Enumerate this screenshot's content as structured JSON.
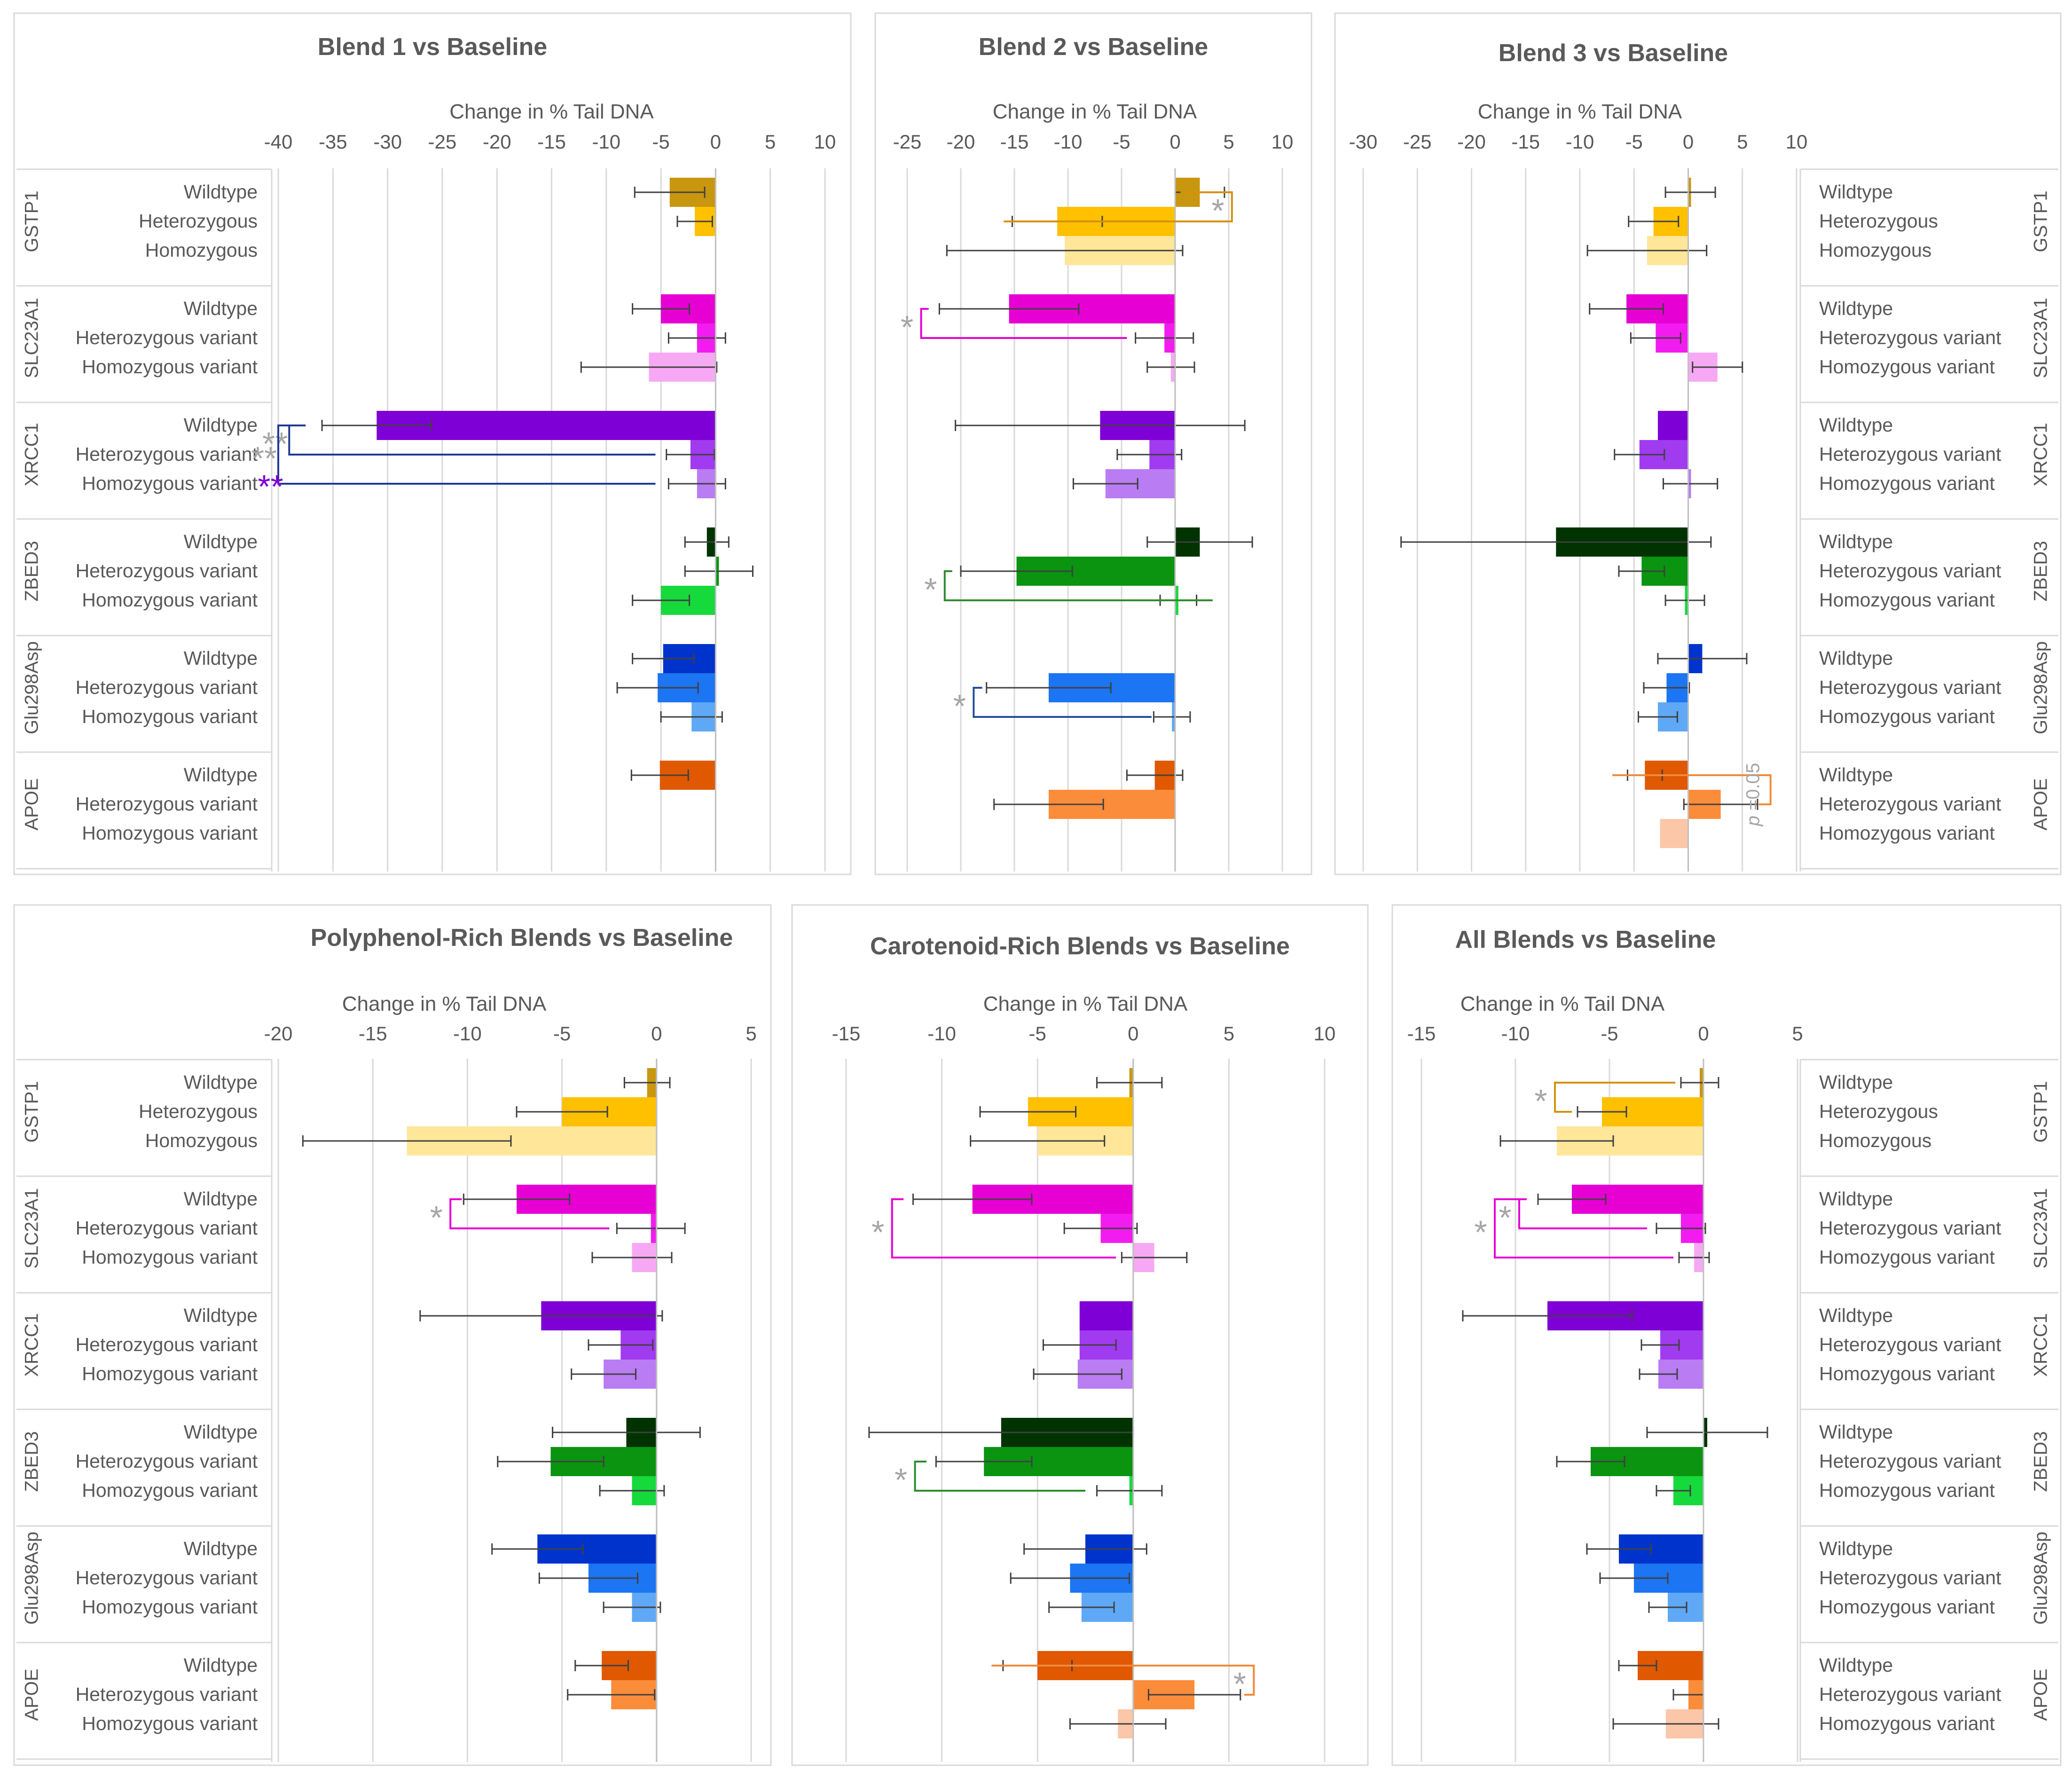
{
  "figure": {
    "axis_title": "Change in % Tail DNA",
    "pvalue_prefix": "p",
    "pvalue_suffix": "=0.05",
    "star": "*"
  },
  "colors": {
    "GSTP1": [
      "#C8960F",
      "#FFC000",
      "#FFE699"
    ],
    "SLC23A1": [
      "#E600D4",
      "#F21CF0",
      "#F7A8F4"
    ],
    "XRCC1": [
      "#7E00D6",
      "#A13BEF",
      "#B97CF3"
    ],
    "ZBED3": [
      "#003300",
      "#0A9410",
      "#16D93C"
    ],
    "Glu298Asp": [
      "#0033CC",
      "#1C75F2",
      "#5FA8F5"
    ],
    "APOE": [
      "#E05800",
      "#FB8C3A",
      "#FBC7A8"
    ]
  },
  "chart_data": [
    {
      "type": "bar",
      "orientation": "horizontal",
      "title": "Blend 1 vs Baseline",
      "xlabel": "Change in % Tail DNA",
      "xlim": [
        -40,
        10
      ],
      "ticks": [
        -40,
        -35,
        -30,
        -25,
        -20,
        -15,
        -10,
        -5,
        0,
        5,
        10
      ],
      "grid": true,
      "gene_labels_side": "left",
      "groups": [
        {
          "gene": "GSTP1",
          "genotypes": [
            "Wildtype",
            "Heterozygous",
            "Homozygous"
          ],
          "values": [
            -4.2,
            -1.9,
            null
          ],
          "errors": [
            3.2,
            1.6,
            null
          ]
        },
        {
          "gene": "SLC23A1",
          "genotypes": [
            "Wildtype",
            "Heterozygous variant",
            "Homozygous variant"
          ],
          "values": [
            -5.0,
            -1.7,
            -6.1
          ],
          "errors": [
            2.6,
            2.6,
            6.2
          ]
        },
        {
          "gene": "XRCC1",
          "genotypes": [
            "Wildtype",
            "Heterozygous variant",
            "Homozygous variant"
          ],
          "values": [
            -31.0,
            -2.3,
            -1.7
          ],
          "errors": [
            5.0,
            2.2,
            2.6
          ]
        },
        {
          "gene": "ZBED3",
          "genotypes": [
            "Wildtype",
            "Heterozygous variant",
            "Homozygous variant"
          ],
          "values": [
            -0.8,
            0.3,
            -5.0
          ],
          "errors": [
            2.0,
            3.1,
            2.6
          ]
        },
        {
          "gene": "Glu298Asp",
          "genotypes": [
            "Wildtype",
            "Heterozygous variant",
            "Homozygous variant"
          ],
          "values": [
            -4.8,
            -5.3,
            -2.2
          ],
          "errors": [
            2.8,
            3.7,
            2.8
          ]
        },
        {
          "gene": "APOE",
          "genotypes": [
            "Wildtype",
            "Heterozygous variant",
            "Homozygous variant"
          ],
          "values": [
            -5.1,
            null,
            null
          ],
          "errors": [
            2.6,
            null,
            null
          ]
        }
      ],
      "significance": [
        {
          "gene": "XRCC1",
          "from": 0,
          "to": 1,
          "bracket_x": -39.0,
          "ends": [
            -38.0,
            -5.5
          ],
          "label": "**",
          "color": "#1F3A93"
        },
        {
          "gene": "XRCC1",
          "from": 0,
          "to": 2,
          "bracket_x": -40.0,
          "ends": [
            -37.5,
            -5.5
          ],
          "label": "**",
          "color": "#1F3A93"
        }
      ],
      "annotations": [
        {
          "text": "**",
          "gene": "XRCC1",
          "row": 2,
          "x": -42.0,
          "color": "#7E00D6"
        }
      ]
    },
    {
      "type": "bar",
      "orientation": "horizontal",
      "title": "Blend 2 vs Baseline",
      "xlabel": "Change in % Tail DNA",
      "xlim": [
        -25,
        10
      ],
      "ticks": [
        -25,
        -20,
        -15,
        -10,
        -5,
        0,
        5,
        10
      ],
      "grid": true,
      "gene_labels_side": "none",
      "groups": [
        {
          "gene": "GSTP1",
          "genotypes": [
            "Wildtype",
            "Heterozygous",
            "Homozygous"
          ],
          "values": [
            2.3,
            -11.0,
            -10.3
          ],
          "errors": [
            2.3,
            4.2,
            11.0
          ]
        },
        {
          "gene": "SLC23A1",
          "genotypes": [
            "Wildtype",
            "Heterozygous variant",
            "Homozygous variant"
          ],
          "values": [
            -15.5,
            -1.0,
            -0.4
          ],
          "errors": [
            6.5,
            2.7,
            2.2
          ]
        },
        {
          "gene": "XRCC1",
          "genotypes": [
            "Wildtype",
            "Heterozygous variant",
            "Homozygous variant"
          ],
          "values": [
            -7.0,
            -2.4,
            -6.5
          ],
          "errors": [
            13.5,
            3.0,
            3.0
          ]
        },
        {
          "gene": "ZBED3",
          "genotypes": [
            "Wildtype",
            "Heterozygous variant",
            "Homozygous variant"
          ],
          "values": [
            2.3,
            -14.8,
            0.3
          ],
          "errors": [
            4.9,
            5.2,
            1.7
          ]
        },
        {
          "gene": "Glu298Asp",
          "genotypes": [
            "Wildtype",
            "Heterozygous variant",
            "Homozygous variant"
          ],
          "values": [
            null,
            -11.8,
            -0.3
          ],
          "errors": [
            null,
            5.8,
            1.7
          ]
        },
        {
          "gene": "APOE",
          "genotypes": [
            "Wildtype",
            "Heterozygous variant",
            "Homozygous variant"
          ],
          "values": [
            -1.9,
            -11.8,
            null
          ],
          "errors": [
            2.6,
            5.1,
            null
          ]
        }
      ],
      "significance": [
        {
          "gene": "GSTP1",
          "from": 0,
          "to": 1,
          "bracket_x": 5.3,
          "bracket_side": "right",
          "ends": [
            0.5,
            -16.0
          ],
          "label": "*",
          "color": "#D4920C"
        },
        {
          "gene": "SLC23A1",
          "from": 0,
          "to": 1,
          "bracket_x": -23.7,
          "ends": [
            -23.0,
            -4.5
          ],
          "label": "*",
          "color": "#E600D4"
        },
        {
          "gene": "ZBED3",
          "from": 1,
          "to": 2,
          "bracket_x": -21.5,
          "ends": [
            -20.8,
            3.5
          ],
          "label": "*",
          "color": "#2E8B2E",
          "bracket_side": "mixed"
        },
        {
          "gene": "Glu298Asp",
          "from": 1,
          "to": 2,
          "bracket_x": -18.8,
          "ends": [
            -18.0,
            -2.2
          ],
          "label": "*",
          "color": "#1F4E9A"
        }
      ]
    },
    {
      "type": "bar",
      "orientation": "horizontal",
      "title": "Blend 3 vs Baseline",
      "xlabel": "Change in % Tail DNA",
      "xlim": [
        -30,
        10
      ],
      "ticks": [
        -30,
        -25,
        -20,
        -15,
        -10,
        -5,
        0,
        5,
        10
      ],
      "grid": true,
      "gene_labels_side": "right",
      "groups": [
        {
          "gene": "GSTP1",
          "genotypes": [
            "Wildtype",
            "Heterozygous",
            "Homozygous"
          ],
          "values": [
            0.2,
            -3.2,
            -3.8
          ],
          "errors": [
            2.3,
            2.3,
            5.5
          ]
        },
        {
          "gene": "SLC23A1",
          "genotypes": [
            "Wildtype",
            "Heterozygous variant",
            "Homozygous variant"
          ],
          "values": [
            -5.7,
            -3.0,
            2.7
          ],
          "errors": [
            3.4,
            2.3,
            2.3
          ]
        },
        {
          "gene": "XRCC1",
          "genotypes": [
            "Wildtype",
            "Heterozygous variant",
            "Homozygous variant"
          ],
          "values": [
            -2.8,
            -4.5,
            0.2
          ],
          "errors": [
            null,
            2.3,
            2.5
          ]
        },
        {
          "gene": "ZBED3",
          "genotypes": [
            "Wildtype",
            "Heterozygous variant",
            "Homozygous variant"
          ],
          "values": [
            -12.2,
            -4.3,
            -0.3
          ],
          "errors": [
            14.3,
            2.1,
            1.8
          ]
        },
        {
          "gene": "Glu298Asp",
          "genotypes": [
            "Wildtype",
            "Heterozygous variant",
            "Homozygous variant"
          ],
          "values": [
            1.3,
            -2.0,
            -2.8
          ],
          "errors": [
            4.1,
            2.1,
            1.8
          ]
        },
        {
          "gene": "APOE",
          "genotypes": [
            "Wildtype",
            "Heterozygous variant",
            "Homozygous variant"
          ],
          "values": [
            -4.0,
            3.0,
            -2.6
          ],
          "errors": [
            1.6,
            3.4,
            null
          ]
        }
      ],
      "significance": [
        {
          "gene": "APOE",
          "from": 0,
          "to": 1,
          "bracket_x": 7.6,
          "bracket_side": "wrap",
          "ends": [
            -7.0,
            6.5
          ],
          "label": "p =0.05",
          "color": "#F08A3C"
        }
      ]
    },
    {
      "type": "bar",
      "orientation": "horizontal",
      "title": "Polyphenol-Rich Blends vs Baseline",
      "xlabel": "Change in % Tail DNA",
      "xlim": [
        -20,
        5
      ],
      "ticks": [
        -20,
        -15,
        -10,
        -5,
        0,
        5
      ],
      "grid": true,
      "gene_labels_side": "left",
      "groups": [
        {
          "gene": "GSTP1",
          "genotypes": [
            "Wildtype",
            "Heterozygous",
            "Homozygous"
          ],
          "values": [
            -0.5,
            -5.0,
            -13.2
          ],
          "errors": [
            1.2,
            2.4,
            5.5
          ]
        },
        {
          "gene": "SLC23A1",
          "genotypes": [
            "Wildtype",
            "Heterozygous variant",
            "Homozygous variant"
          ],
          "values": [
            -7.4,
            -0.3,
            -1.3
          ],
          "errors": [
            2.8,
            1.8,
            2.1
          ]
        },
        {
          "gene": "XRCC1",
          "genotypes": [
            "Wildtype",
            "Heterozygous variant",
            "Homozygous variant"
          ],
          "values": [
            -6.1,
            -1.9,
            -2.8
          ],
          "errors": [
            6.4,
            1.7,
            1.7
          ]
        },
        {
          "gene": "ZBED3",
          "genotypes": [
            "Wildtype",
            "Heterozygous variant",
            "Homozygous variant"
          ],
          "values": [
            -1.6,
            -5.6,
            -1.3
          ],
          "errors": [
            3.9,
            2.8,
            1.7
          ]
        },
        {
          "gene": "Glu298Asp",
          "genotypes": [
            "Wildtype",
            "Heterozygous variant",
            "Homozygous variant"
          ],
          "values": [
            -6.3,
            -3.6,
            -1.3
          ],
          "errors": [
            2.4,
            2.6,
            1.5
          ]
        },
        {
          "gene": "APOE",
          "genotypes": [
            "Wildtype",
            "Heterozygous variant",
            "Homozygous variant"
          ],
          "values": [
            -2.9,
            -2.4,
            null
          ],
          "errors": [
            1.4,
            2.3,
            null
          ]
        }
      ],
      "significance": [
        {
          "gene": "SLC23A1",
          "from": 0,
          "to": 1,
          "bracket_x": -10.9,
          "ends": [
            -10.3,
            -2.5
          ],
          "label": "*",
          "color": "#E600D4"
        }
      ]
    },
    {
      "type": "bar",
      "orientation": "horizontal",
      "title": "Carotenoid-Rich Blends vs Baseline",
      "xlabel": "Change in % Tail DNA",
      "xlim": [
        -15,
        10
      ],
      "ticks": [
        -15,
        -10,
        -5,
        0,
        5,
        10
      ],
      "grid": true,
      "gene_labels_side": "none",
      "groups": [
        {
          "gene": "GSTP1",
          "genotypes": [
            "Wildtype",
            "Heterozygous",
            "Homozygous"
          ],
          "values": [
            -0.2,
            -5.5,
            -5.0
          ],
          "errors": [
            1.7,
            2.5,
            3.5
          ]
        },
        {
          "gene": "SLC23A1",
          "genotypes": [
            "Wildtype",
            "Heterozygous variant",
            "Homozygous variant"
          ],
          "values": [
            -8.4,
            -1.7,
            1.1
          ],
          "errors": [
            3.1,
            1.9,
            1.7
          ]
        },
        {
          "gene": "XRCC1",
          "genotypes": [
            "Wildtype",
            "Heterozygous variant",
            "Homozygous variant"
          ],
          "values": [
            -2.8,
            -2.8,
            -2.9
          ],
          "errors": [
            null,
            1.9,
            2.3
          ]
        },
        {
          "gene": "ZBED3",
          "genotypes": [
            "Wildtype",
            "Heterozygous variant",
            "Homozygous variant"
          ],
          "values": [
            -6.9,
            -7.8,
            -0.2
          ],
          "errors": [
            6.9,
            2.5,
            1.7
          ]
        },
        {
          "gene": "Glu298Asp",
          "genotypes": [
            "Wildtype",
            "Heterozygous variant",
            "Homozygous variant"
          ],
          "values": [
            -2.5,
            -3.3,
            -2.7
          ],
          "errors": [
            3.2,
            3.1,
            1.7
          ]
        },
        {
          "gene": "APOE",
          "genotypes": [
            "Wildtype",
            "Heterozygous variant",
            "Homozygous variant"
          ],
          "values": [
            -5.0,
            3.2,
            -0.8
          ],
          "errors": [
            1.8,
            2.4,
            2.5
          ]
        }
      ],
      "significance": [
        {
          "gene": "SLC23A1",
          "from": 0,
          "to": 2,
          "bracket_x": -12.6,
          "ends": [
            -12.0,
            -0.9
          ],
          "label": "*",
          "color": "#E600D4"
        },
        {
          "gene": "ZBED3",
          "from": 1,
          "to": 2,
          "bracket_x": -11.4,
          "ends": [
            -10.8,
            -2.5
          ],
          "label": "*",
          "color": "#2E8B2E"
        },
        {
          "gene": "APOE",
          "from": 0,
          "to": 1,
          "bracket_x": 6.3,
          "bracket_side": "wrap",
          "ends": [
            -7.4,
            5.8
          ],
          "label": "*",
          "color": "#F08A3C"
        }
      ]
    },
    {
      "type": "bar",
      "orientation": "horizontal",
      "title": "All Blends vs Baseline",
      "xlabel": "Change in % Tail DNA",
      "xlim": [
        -15,
        5
      ],
      "ticks": [
        -15,
        -10,
        -5,
        0,
        5
      ],
      "grid": true,
      "gene_labels_side": "right",
      "groups": [
        {
          "gene": "GSTP1",
          "genotypes": [
            "Wildtype",
            "Heterozygous",
            "Homozygous"
          ],
          "values": [
            -0.2,
            -5.4,
            -7.8
          ],
          "errors": [
            1.0,
            1.3,
            3.0
          ]
        },
        {
          "gene": "SLC23A1",
          "genotypes": [
            "Wildtype",
            "Heterozygous variant",
            "Homozygous variant"
          ],
          "values": [
            -7.0,
            -1.2,
            -0.5
          ],
          "errors": [
            1.8,
            1.3,
            0.8
          ]
        },
        {
          "gene": "XRCC1",
          "genotypes": [
            "Wildtype",
            "Heterozygous variant",
            "Homozygous variant"
          ],
          "values": [
            -8.3,
            -2.3,
            -2.4
          ],
          "errors": [
            4.5,
            1.0,
            1.0
          ]
        },
        {
          "gene": "ZBED3",
          "genotypes": [
            "Wildtype",
            "Heterozygous variant",
            "Homozygous variant"
          ],
          "values": [
            0.2,
            -6.0,
            -1.6
          ],
          "errors": [
            3.2,
            1.8,
            0.9
          ]
        },
        {
          "gene": "Glu298Asp",
          "genotypes": [
            "Wildtype",
            "Heterozygous variant",
            "Homozygous variant"
          ],
          "values": [
            -4.5,
            -3.7,
            -1.9
          ],
          "errors": [
            1.7,
            1.8,
            1.0
          ]
        },
        {
          "gene": "APOE",
          "genotypes": [
            "Wildtype",
            "Heterozygous variant",
            "Homozygous variant"
          ],
          "values": [
            -3.5,
            -0.8,
            -2.0
          ],
          "errors": [
            1.0,
            0.8,
            2.8
          ]
        }
      ],
      "significance": [
        {
          "gene": "GSTP1",
          "from": 0,
          "to": 1,
          "bracket_x": -7.9,
          "ends": [
            -1.5,
            -7.0
          ],
          "label": "*",
          "color": "#D4920C"
        },
        {
          "gene": "SLC23A1",
          "from": 0,
          "to": 1,
          "bracket_x": -9.8,
          "ends": [
            -9.4,
            -3.0
          ],
          "label": "*",
          "color": "#E600D4"
        },
        {
          "gene": "SLC23A1",
          "from": 0,
          "to": 2,
          "bracket_x": -11.1,
          "ends": [
            -9.4,
            -1.6
          ],
          "label": "*",
          "color": "#E600D4"
        }
      ]
    }
  ]
}
